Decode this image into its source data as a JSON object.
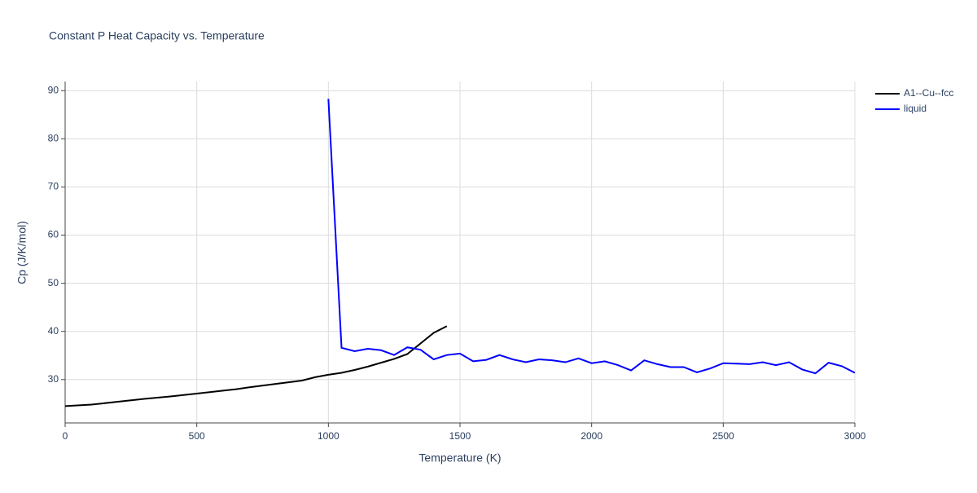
{
  "chart_data": {
    "type": "line",
    "title": "Constant P Heat Capacity vs. Temperature",
    "x_label": "Temperature (K)",
    "y_label": "Cp (J/K/mol)",
    "xlim": [
      0,
      3000
    ],
    "xticks": [
      0,
      500,
      1000,
      1500,
      2000,
      2500,
      3000
    ],
    "ylim": [
      21.0,
      91.9
    ],
    "yticks": [
      30,
      40,
      50,
      60,
      70,
      80,
      90
    ],
    "grid": true,
    "legend": "top-right",
    "series": [
      {
        "name": "A1--Cu--fcc",
        "color": "#000000",
        "x": [
          0,
          100,
          200,
          300,
          400,
          500,
          600,
          650,
          700,
          800,
          900,
          950,
          1000,
          1050,
          1100,
          1150,
          1200,
          1250,
          1300,
          1350,
          1400,
          1450
        ],
        "values": [
          24.5,
          24.8,
          25.4,
          26.0,
          26.5,
          27.1,
          27.7,
          28.0,
          28.4,
          29.1,
          29.8,
          30.5,
          31.0,
          31.4,
          32.0,
          32.7,
          33.5,
          34.3,
          35.3,
          37.5,
          39.7,
          41.1
        ]
      },
      {
        "name": "liquid",
        "color": "#0000ff",
        "x": [
          1000,
          1050,
          1100,
          1150,
          1200,
          1250,
          1300,
          1350,
          1400,
          1450,
          1500,
          1550,
          1600,
          1650,
          1700,
          1750,
          1800,
          1850,
          1900,
          1950,
          2000,
          2050,
          2100,
          2150,
          2200,
          2250,
          2300,
          2350,
          2400,
          2450,
          2500,
          2550,
          2600,
          2650,
          2700,
          2750,
          2800,
          2850,
          2900,
          2950,
          3000
        ],
        "values": [
          88.3,
          36.6,
          35.9,
          36.4,
          36.1,
          35.1,
          36.7,
          36.2,
          34.2,
          35.1,
          35.4,
          33.8,
          34.1,
          35.1,
          34.2,
          33.6,
          34.2,
          34.0,
          33.6,
          34.4,
          33.4,
          33.8,
          33.0,
          31.9,
          34.0,
          33.2,
          32.6,
          32.6,
          31.5,
          32.3,
          33.4,
          33.3,
          33.2,
          33.6,
          33.0,
          33.6,
          32.1,
          31.3,
          33.5,
          32.8,
          31.4
        ]
      }
    ]
  }
}
